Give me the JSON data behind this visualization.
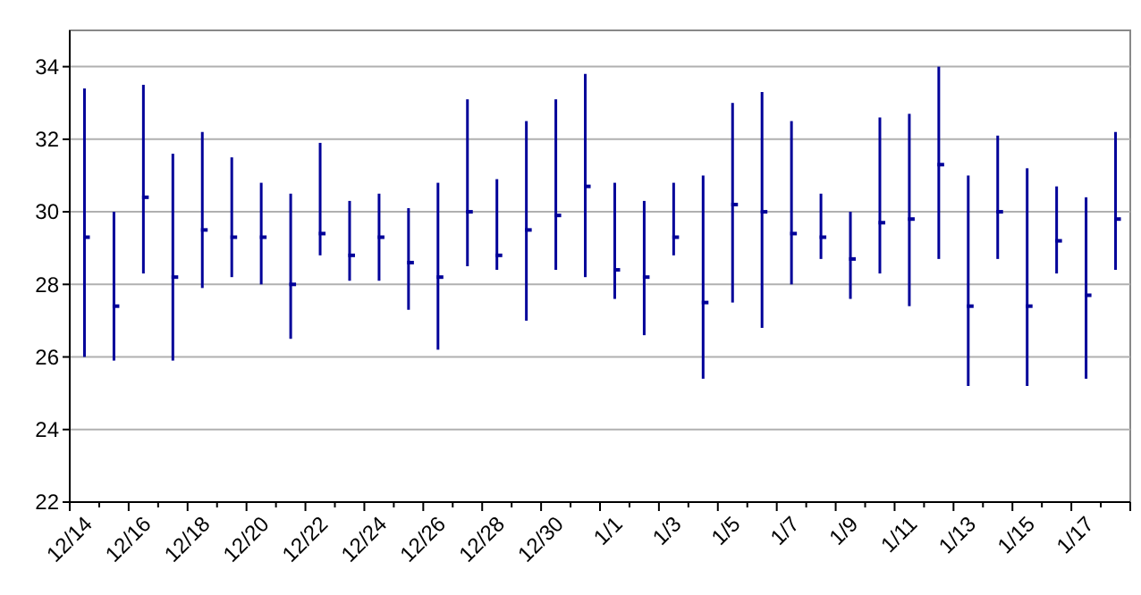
{
  "chart_data": {
    "type": "candlestick",
    "color": "#000099",
    "categories": [
      "12/14",
      null,
      "12/16",
      null,
      "12/18",
      null,
      "12/20",
      null,
      "12/22",
      null,
      "12/24",
      null,
      "12/26",
      null,
      "12/28",
      null,
      "12/30",
      null,
      "1/1",
      null,
      "1/3",
      null,
      "1/5",
      null,
      "1/7",
      null,
      "1/9",
      null,
      "1/11",
      null,
      "1/13",
      null,
      "1/15",
      null,
      "1/17",
      null
    ],
    "ohlc": [
      [
        29.3,
        33.4,
        26.0,
        29.3
      ],
      [
        27.4,
        30.0,
        25.9,
        27.4
      ],
      [
        30.4,
        33.5,
        28.3,
        30.4
      ],
      [
        28.2,
        31.6,
        25.9,
        28.2
      ],
      [
        29.5,
        32.2,
        27.9,
        29.5
      ],
      [
        29.3,
        31.5,
        28.2,
        29.3
      ],
      [
        29.3,
        30.8,
        28.0,
        29.3
      ],
      [
        28.0,
        30.5,
        26.5,
        28.0
      ],
      [
        29.4,
        31.9,
        28.8,
        29.4
      ],
      [
        28.8,
        30.3,
        28.1,
        28.8
      ],
      [
        29.3,
        30.5,
        28.1,
        29.3
      ],
      [
        28.6,
        30.1,
        27.3,
        28.6
      ],
      [
        28.2,
        30.8,
        26.2,
        28.2
      ],
      [
        30.0,
        33.1,
        28.5,
        30.0
      ],
      [
        28.8,
        30.9,
        28.4,
        28.8
      ],
      [
        29.5,
        32.5,
        27.0,
        29.5
      ],
      [
        29.9,
        33.1,
        28.4,
        29.9
      ],
      [
        30.7,
        33.8,
        28.2,
        30.7
      ],
      [
        28.4,
        30.8,
        27.6,
        28.4
      ],
      [
        28.2,
        30.3,
        26.6,
        28.2
      ],
      [
        29.3,
        30.8,
        28.8,
        29.3
      ],
      [
        27.5,
        31.0,
        25.4,
        27.5
      ],
      [
        30.2,
        33.0,
        27.5,
        30.2
      ],
      [
        30.0,
        33.3,
        26.8,
        30.0
      ],
      [
        29.4,
        32.5,
        28.0,
        29.4
      ],
      [
        29.3,
        30.5,
        28.7,
        29.3
      ],
      [
        28.7,
        30.0,
        27.6,
        28.7
      ],
      [
        29.7,
        32.6,
        28.3,
        29.7
      ],
      [
        29.8,
        32.7,
        27.4,
        29.8
      ],
      [
        31.3,
        34.0,
        28.7,
        31.3
      ],
      [
        27.4,
        31.0,
        25.2,
        27.4
      ],
      [
        30.0,
        32.1,
        28.7,
        30.0
      ],
      [
        27.4,
        31.2,
        25.2,
        27.4
      ],
      [
        29.2,
        30.7,
        28.3,
        29.2
      ],
      [
        27.7,
        30.4,
        25.4,
        27.7
      ],
      [
        29.8,
        32.2,
        28.4,
        29.8
      ]
    ],
    "ylim": [
      22,
      35
    ],
    "yticks": [
      22,
      24,
      26,
      28,
      30,
      32,
      34
    ],
    "grid": "y"
  }
}
